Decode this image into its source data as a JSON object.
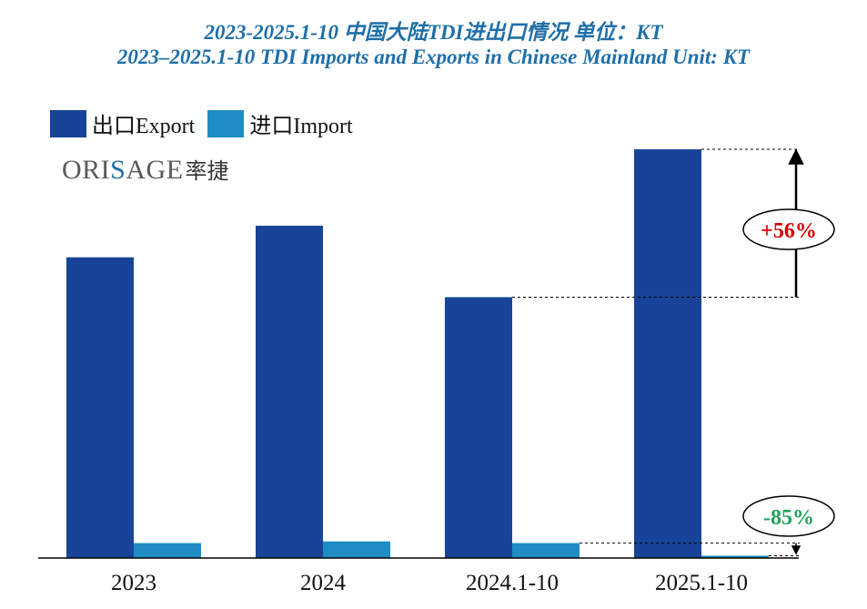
{
  "title_cn": "2023-2025.1-10 中国大陆TDI进出口情况  单位：KT",
  "title_en": "2023–2025.1-10 TDI Imports and Exports in Chinese Mainland  Unit: KT",
  "logo": {
    "prefix": "ORI",
    "accent": "S",
    "suffix": "AGE",
    "cn": "率捷"
  },
  "colors": {
    "export": "#174498",
    "import": "#1f8cc4",
    "increase": "#d40000",
    "decrease": "#1fa35a"
  },
  "chart_data": {
    "type": "bar",
    "categories": [
      "2023",
      "2024",
      "2024.1-10",
      "2025.1-10"
    ],
    "series": [
      {
        "name": "出口Export",
        "values": [
          181,
          200,
          157,
          246
        ]
      },
      {
        "name": "进口Import",
        "values": [
          9,
          10,
          9,
          1.4
        ]
      }
    ],
    "ylim": [
      0,
      246
    ],
    "grid": false,
    "legend": "top-left",
    "annotations": [
      {
        "text": "+56%",
        "series": "出口Export",
        "from": "2024.1-10",
        "to": "2025.1-10"
      },
      {
        "text": "-85%",
        "series": "进口Import",
        "from": "2024.1-10",
        "to": "2025.1-10"
      }
    ]
  }
}
